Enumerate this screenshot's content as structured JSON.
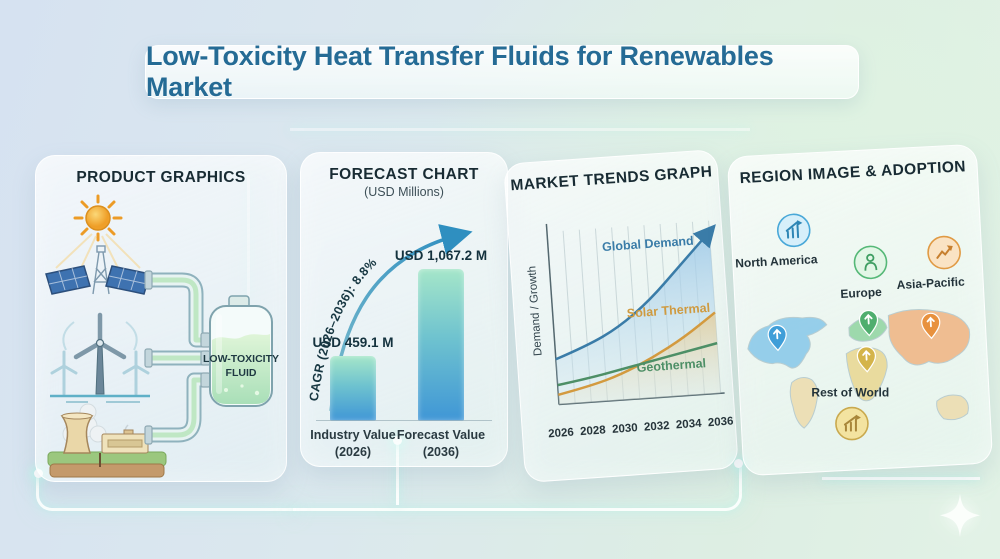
{
  "title": "Low-Toxicity Heat Transfer Fluids for Renewables Market",
  "panels": {
    "product": {
      "title": "PRODUCT GRAPHICS",
      "tank_label": [
        "LOW-TOXICITY",
        "FLUID"
      ],
      "graphics": [
        "solar-energy",
        "wind-energy",
        "geothermal-plant",
        "pipes",
        "fluid-tank"
      ]
    },
    "forecast": {
      "title": "FORECAST CHART",
      "subtitle": "(USD Millions)",
      "cagr_label": "CAGR (2026–2036): 8.8%",
      "bars": [
        {
          "value_label": "USD 459.1 M",
          "label_line1": "Industry Value",
          "label_line2": "(2026)"
        },
        {
          "value_label": "USD 1,067.2 M",
          "label_line1": "Forecast Value",
          "label_line2": "(2036)"
        }
      ]
    },
    "trends": {
      "title": "MARKET TRENDS GRAPH",
      "ylabel": "Demand / Growth"
    },
    "regions": {
      "title": "REGION IMAGE & ADOPTION",
      "items": [
        {
          "label": "North America",
          "icon": "bar-chart-growth-icon",
          "color": "#45a5d9"
        },
        {
          "label": "Europe",
          "icon": "eco-person-icon",
          "color": "#55b677"
        },
        {
          "label": "Asia-Pacific",
          "icon": "trend-up-icon",
          "color": "#e5963f"
        },
        {
          "label": "Rest of World",
          "icon": "line-chart-icon",
          "color": "#d3b44b"
        }
      ]
    }
  },
  "colors": {
    "title_text": "#256b95",
    "bar_gradient_top": "#a5e6c9",
    "bar_gradient_bottom": "#3f96d6",
    "global_demand": "#3a7ca8",
    "solar_thermal": "#d39a3f",
    "geothermal": "#4d8f66"
  },
  "chart_data": [
    {
      "type": "bar",
      "title": "FORECAST CHART",
      "subtitle": "(USD Millions)",
      "categories": [
        "Industry Value (2026)",
        "Forecast Value (2036)"
      ],
      "values": [
        459.1,
        1067.2
      ],
      "value_labels": [
        "USD 459.1 M",
        "USD 1,067.2 M"
      ],
      "annotation": "CAGR (2026–2036): 8.8%",
      "ylabel": "USD Millions"
    },
    {
      "type": "line",
      "title": "MARKET TRENDS GRAPH",
      "x": [
        2026,
        2028,
        2030,
        2032,
        2034,
        2036
      ],
      "xlabel": "",
      "ylabel": "Demand / Growth",
      "ylim": [
        0,
        100
      ],
      "grid": "vertical",
      "legend_position": "inline-labels",
      "series": [
        {
          "name": "Global Demand",
          "values": [
            28,
            35,
            45,
            60,
            80,
            100
          ]
        },
        {
          "name": "Solar Thermal",
          "values": [
            6,
            10,
            16,
            25,
            36,
            50
          ]
        },
        {
          "name": "Geothermal",
          "values": [
            12,
            15,
            19,
            23,
            27,
            31
          ]
        }
      ]
    }
  ]
}
